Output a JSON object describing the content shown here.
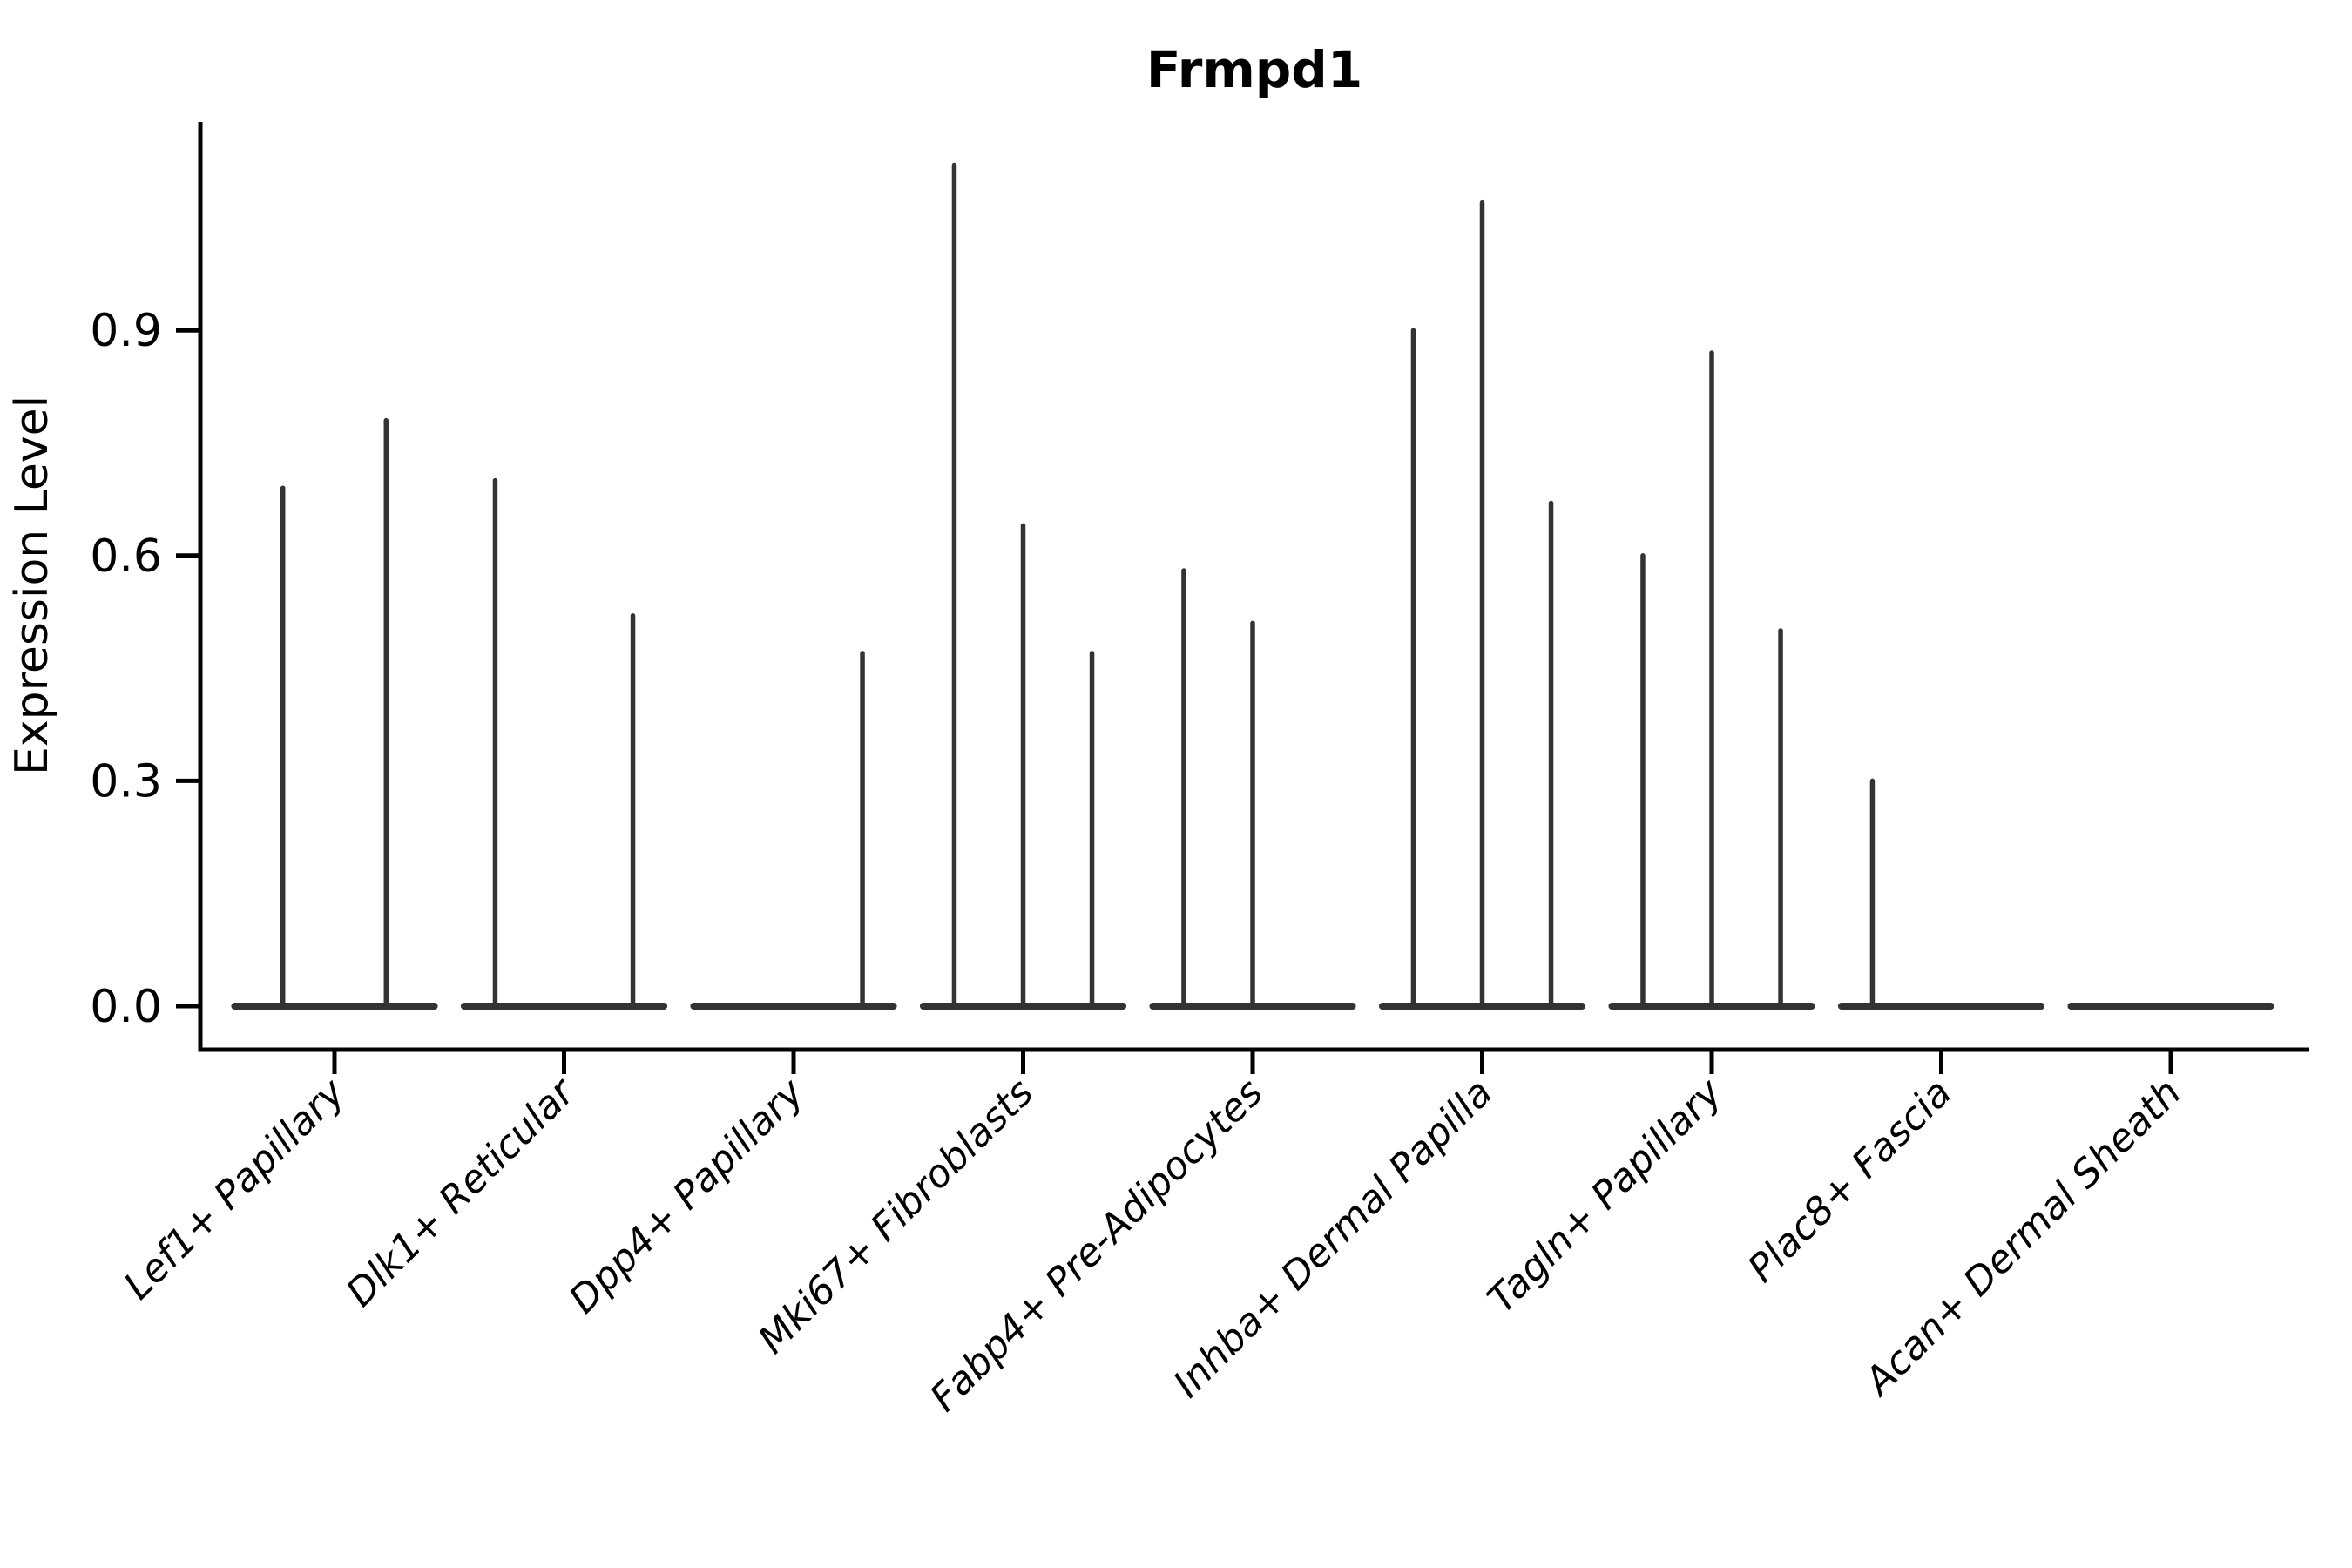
{
  "figure": {
    "kind": "single-cell violin plot (expression by cluster)",
    "background_color": "#ffffff"
  },
  "chart_data": {
    "type": "violin",
    "title": "Frmpd1",
    "xlabel": "",
    "ylabel": "Expression Level",
    "ytick_labels": [
      "0.0",
      "0.3",
      "0.6",
      "0.9"
    ],
    "ytick_values": [
      0.0,
      0.3,
      0.6,
      0.9
    ],
    "ylim": [
      0.0,
      1.177
    ],
    "grid": false,
    "legend": "none",
    "x_tick_label_rotation_deg": 45,
    "x_tick_label_style": "italic",
    "violin_shape_note": "violins collapsed to a wide flat base at 0 with a thin spike up to the max expression; 0 means a fully flat violin with no spike",
    "categories": [
      {
        "label": "Lef1+ Papillary",
        "violins": [
          0.69,
          0.78
        ]
      },
      {
        "label": "Dlk1+ Reticular",
        "violins": [
          0.7,
          0.0,
          0.52
        ]
      },
      {
        "label": "Dpp4+ Papillary",
        "violins": [
          0.0,
          0.0,
          0.47
        ]
      },
      {
        "label": "Mki67+ Fibroblasts",
        "violins": [
          1.12,
          0.64,
          0.47
        ]
      },
      {
        "label": "Fabp4+ Pre-Adipocytes",
        "violins": [
          0.58,
          0.51,
          0.0
        ]
      },
      {
        "label": "Inhba+ Dermal Papilla",
        "violins": [
          0.9,
          1.07,
          0.67
        ]
      },
      {
        "label": "Tagln+ Papillary",
        "violins": [
          0.6,
          0.87,
          0.5
        ]
      },
      {
        "label": "Plac8+ Fascia",
        "violins": [
          0.3,
          0.0,
          0.0
        ]
      },
      {
        "label": "Acan+ Dermal Sheath",
        "violins": [
          0.0,
          0.0,
          0.0
        ]
      }
    ],
    "colors": {
      "violin_stroke": "#333333",
      "axis": "#000000",
      "text": "#000000",
      "background": "#ffffff"
    }
  }
}
